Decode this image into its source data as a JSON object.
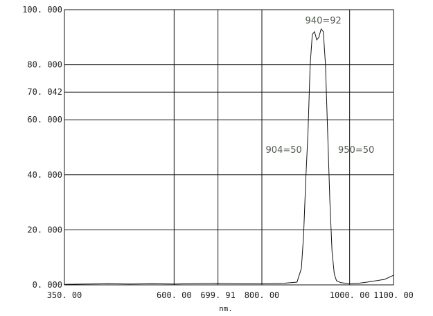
{
  "chart_data": {
    "type": "line",
    "title": "",
    "xlabel": "nm.",
    "ylabel": "",
    "xlim": [
      350.0,
      1100.0
    ],
    "ylim": [
      0.0,
      100.0
    ],
    "x_ticks": [
      350.0,
      600.0,
      699.91,
      800.0,
      1000.0,
      1100.0
    ],
    "x_tick_labels": [
      "350. 00",
      "600. 00",
      "699. 91",
      "800. 00",
      "1000. 00",
      "1100. 00"
    ],
    "y_ticks": [
      0,
      20,
      40,
      60,
      70.042,
      80,
      100
    ],
    "y_tick_labels": [
      "0. 000",
      "20. 000",
      "40. 000",
      "60. 000",
      "70. 042",
      "80. 000",
      "100. 000"
    ],
    "grid": true,
    "series": [
      {
        "color": "#111111",
        "x": [
          350,
          400,
          450,
          500,
          550,
          600,
          650,
          700,
          750,
          800,
          850,
          880,
          890,
          895,
          900,
          905,
          910,
          915,
          920,
          925,
          930,
          935,
          940,
          945,
          950,
          955,
          960,
          965,
          970,
          980,
          1000,
          1020,
          1040,
          1060,
          1080,
          1100
        ],
        "y": [
          0.2,
          0.3,
          0.4,
          0.3,
          0.4,
          0.3,
          0.5,
          0.6,
          0.4,
          0.4,
          0.6,
          1.0,
          6,
          18,
          38,
          55,
          80,
          91,
          92,
          89,
          90,
          93,
          92,
          80,
          55,
          30,
          12,
          4,
          1.5,
          0.8,
          0.4,
          0.6,
          1.0,
          1.5,
          2.0,
          3.5
        ]
      }
    ],
    "annotations": [
      {
        "text": "940=92",
        "x": 940,
        "y": 95
      },
      {
        "text": "904=50",
        "x": 850,
        "y": 48
      },
      {
        "text": "950=50",
        "x": 1015,
        "y": 48
      }
    ]
  }
}
